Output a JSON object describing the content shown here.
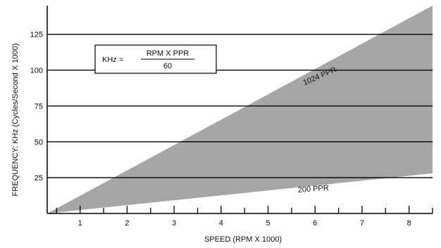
{
  "chart_data": {
    "type": "area",
    "xlabel": "SPEED (RPM X 1000)",
    "ylabel": "FREQUENCY: KHz (Cycles/Second X 1000)",
    "xlim": [
      0.3,
      8.5
    ],
    "ylim": [
      0,
      145
    ],
    "x_ticks": [
      "1",
      "2",
      "3",
      "4",
      "5",
      "6",
      "7",
      "8"
    ],
    "y_ticks": [
      "25",
      "50",
      "75",
      "100",
      "125"
    ],
    "grid": "horizontal",
    "series": [
      {
        "name": "1024 PPR",
        "x": [
          0.3,
          8.5
        ],
        "y": [
          0,
          145
        ]
      },
      {
        "name": "200 PPR",
        "x": [
          0.3,
          8.5
        ],
        "y": [
          0,
          28
        ]
      }
    ],
    "fill_between": [
      "1024 PPR",
      "200 PPR"
    ],
    "fill_color": "#a6a6a6",
    "annotation": {
      "lhs": "KHz =",
      "numerator": "RPM X PPR",
      "denominator": "60"
    }
  }
}
